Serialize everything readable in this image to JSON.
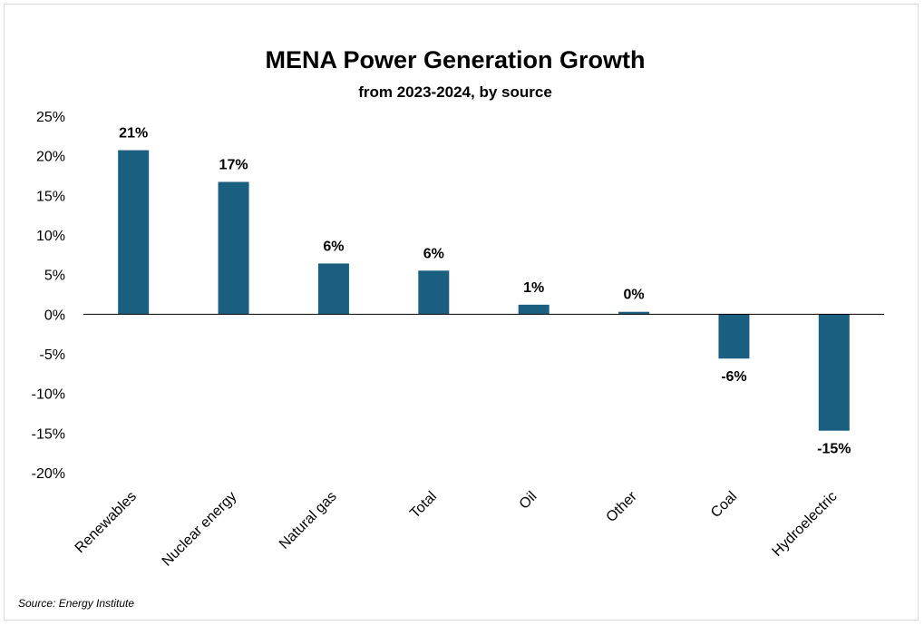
{
  "chart_data": {
    "type": "bar",
    "title": "MENA Power Generation Growth",
    "subtitle": "from 2023-2024, by source",
    "categories": [
      "Renewables",
      "Nuclear energy",
      "Natural gas",
      "Total",
      "Oil",
      "Other",
      "Coal",
      "Hydroelectric"
    ],
    "values": [
      20.7,
      16.7,
      6.4,
      5.5,
      1.2,
      0.3,
      -5.6,
      -14.7
    ],
    "data_labels": [
      "21%",
      "17%",
      "6%",
      "6%",
      "1%",
      "0%",
      "-6%",
      "-15%"
    ],
    "ylim": [
      -20,
      25
    ],
    "yticks": [
      25,
      20,
      15,
      10,
      5,
      0,
      -5,
      -10,
      -15,
      -20
    ],
    "ytick_labels": [
      "25%",
      "20%",
      "15%",
      "10%",
      "5%",
      "0%",
      "-5%",
      "-10%",
      "-15%",
      "-20%"
    ],
    "xlabel": "",
    "ylabel": "",
    "grid": false,
    "bar_color": "#1b5f80",
    "source": "Source: Energy Institute"
  }
}
